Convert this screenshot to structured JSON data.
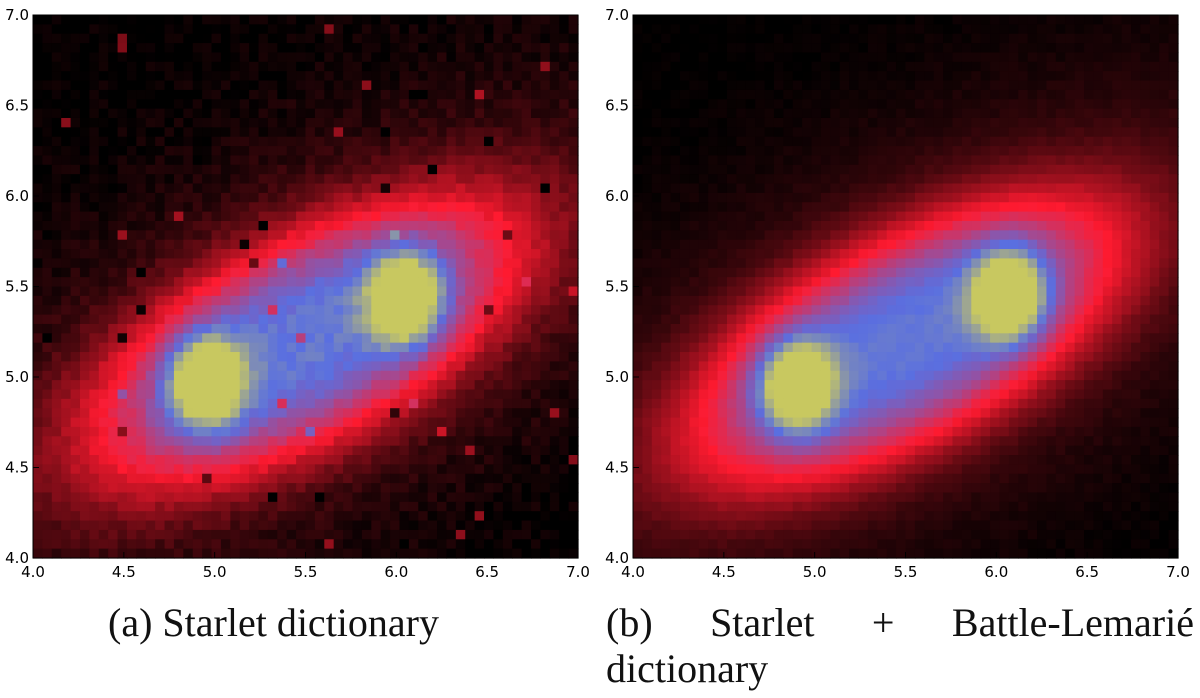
{
  "chart_data": [
    {
      "type": "heatmap",
      "panel_label": "(a)",
      "caption": "Starlet dictionary",
      "xlim": [
        4.0,
        7.0
      ],
      "ylim": [
        4.0,
        7.0
      ],
      "xticks": [
        "4.0",
        "4.5",
        "5.0",
        "5.5",
        "6.0",
        "6.5",
        "7.0"
      ],
      "yticks": [
        "4.0",
        "4.5",
        "5.0",
        "5.5",
        "6.0",
        "6.5",
        "7.0"
      ],
      "grid": false,
      "colormap": [
        "#000000",
        "#ff1a30",
        "#5a6fe0",
        "#c8c860"
      ],
      "features": {
        "envelope": {
          "x": 5.5,
          "y": 5.2,
          "rx": 1.3,
          "ry": 0.55,
          "angle_deg": 28
        },
        "cores": [
          {
            "x": 4.95,
            "y": 4.97,
            "level": 1.0
          },
          {
            "x": 6.05,
            "y": 5.43,
            "level": 1.0
          }
        ],
        "noise": true
      }
    },
    {
      "type": "heatmap",
      "panel_label": "(b)",
      "caption_words": [
        "Starlet",
        "+",
        "Battle-Lemarié"
      ],
      "caption_line2": "dictionary",
      "xlim": [
        4.0,
        7.0
      ],
      "ylim": [
        4.0,
        7.0
      ],
      "xticks": [
        "4.0",
        "4.5",
        "5.0",
        "5.5",
        "6.0",
        "6.5",
        "7.0"
      ],
      "yticks": [
        "4.0",
        "4.5",
        "5.0",
        "5.5",
        "6.0",
        "6.5",
        "7.0"
      ],
      "grid": false,
      "colormap": [
        "#000000",
        "#ff1a30",
        "#5a6fe0",
        "#c8c860"
      ],
      "features": {
        "envelope": {
          "x": 5.5,
          "y": 5.2,
          "rx": 1.3,
          "ry": 0.55,
          "angle_deg": 28
        },
        "cores": [
          {
            "x": 4.9,
            "y": 4.95,
            "level": 1.0
          },
          {
            "x": 6.07,
            "y": 5.45,
            "level": 1.0
          }
        ],
        "noise": false
      }
    }
  ]
}
